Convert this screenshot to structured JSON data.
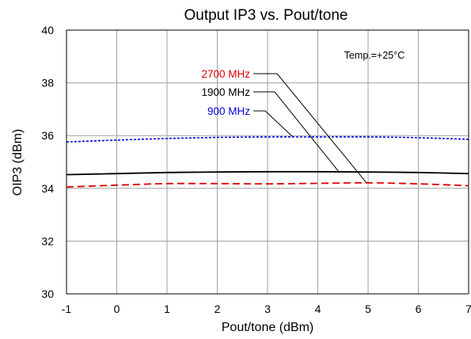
{
  "chart_data": {
    "type": "line",
    "title": "Output IP3 vs. Pout/tone",
    "xlabel": "Pout/tone (dBm)",
    "ylabel": "OIP3 (dBm)",
    "xlim": [
      -1,
      7
    ],
    "ylim": [
      30,
      40
    ],
    "x_ticks": [
      -1,
      0,
      1,
      2,
      3,
      4,
      5,
      6,
      7
    ],
    "y_ticks": [
      30,
      32,
      34,
      36,
      38,
      40
    ],
    "grid": true,
    "annotation": "Temp.=+25°C",
    "series": [
      {
        "name": "2700 MHz",
        "color": "#e00000",
        "line_style": "dashed",
        "x": [
          -1,
          0,
          1,
          2,
          3,
          4,
          5,
          6,
          7
        ],
        "y": [
          34.05,
          34.12,
          34.18,
          34.18,
          34.17,
          34.19,
          34.21,
          34.17,
          34.1
        ]
      },
      {
        "name": "1900 MHz",
        "color": "#000000",
        "line_style": "solid",
        "x": [
          -1,
          0,
          1,
          2,
          3,
          4,
          5,
          6,
          7
        ],
        "y": [
          34.52,
          34.56,
          34.6,
          34.62,
          34.63,
          34.63,
          34.62,
          34.6,
          34.56
        ]
      },
      {
        "name": "900 MHz",
        "color": "#0000e0",
        "line_style": "dotted",
        "x": [
          -1,
          0,
          1,
          2,
          3,
          4,
          5,
          6,
          7
        ],
        "y": [
          35.76,
          35.83,
          35.89,
          35.93,
          35.95,
          35.95,
          35.95,
          35.92,
          35.86
        ]
      }
    ]
  }
}
